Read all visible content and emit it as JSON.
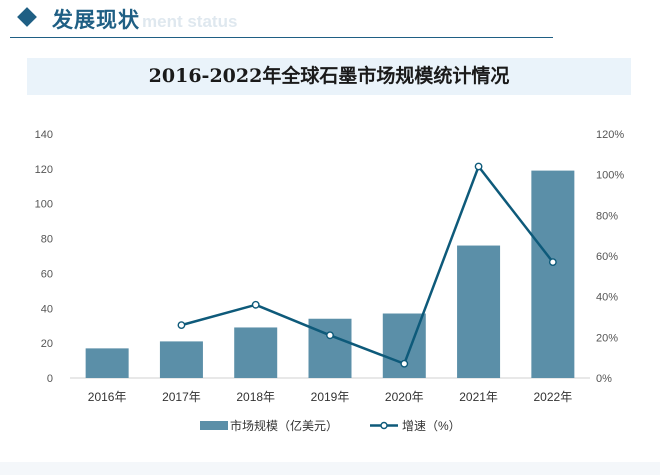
{
  "header": {
    "title": "发展现状",
    "subtitle": "ment status"
  },
  "colors": {
    "accent": "#1f5f84",
    "bar": "#5b8fa8",
    "line": "#0e5a7a",
    "title_band": "#eaf3fa"
  },
  "icons": [
    "diamond-icon"
  ],
  "chart_data": {
    "type": "bar",
    "title": "2016-2022年全球石墨市场规模统计情况",
    "categories": [
      "2016年",
      "2017年",
      "2018年",
      "2019年",
      "2020年",
      "2021年",
      "2022年"
    ],
    "series": [
      {
        "name": "市场规模（亿美元）",
        "type": "bar",
        "axis": "left",
        "values": [
          17,
          21,
          29,
          34,
          37,
          76,
          119
        ]
      },
      {
        "name": "增速（%）",
        "type": "line",
        "axis": "right",
        "values": [
          null,
          26,
          36,
          21,
          7,
          104,
          57
        ]
      }
    ],
    "ylim": [
      0,
      140
    ],
    "y_ticks": [
      "0",
      "20",
      "40",
      "60",
      "80",
      "100",
      "120",
      "140"
    ],
    "y2lim": [
      0,
      120
    ],
    "y2_ticks": [
      "0%",
      "20%",
      "40%",
      "60%",
      "80%",
      "100%",
      "120%"
    ],
    "grid": false,
    "legend_position": "bottom"
  }
}
